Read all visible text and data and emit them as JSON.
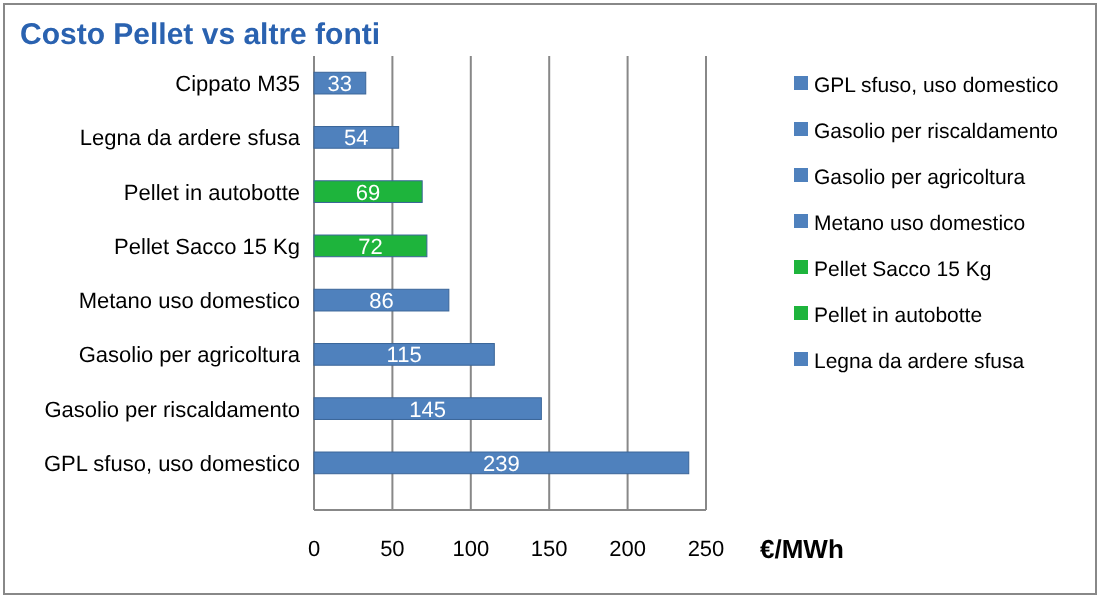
{
  "chart_data": {
    "type": "bar",
    "orientation": "horizontal",
    "title": "Costo Pellet vs altre fonti",
    "xlabel": "€/MWh",
    "categories": [
      "Cippato  M35",
      "Legna da ardere sfusa",
      "Pellet in autobotte",
      "Pellet Sacco 15 Kg",
      "Metano uso domestico",
      "Gasolio per agricoltura",
      "Gasolio per riscaldamento",
      "GPL sfuso, uso domestico"
    ],
    "series": [
      {
        "name": "GPL sfuso, uso domestico",
        "color": "#4f81bd",
        "values": [
          null,
          null,
          null,
          null,
          null,
          null,
          null,
          239
        ]
      },
      {
        "name": "Gasolio per riscaldamento",
        "color": "#4f81bd",
        "values": [
          null,
          null,
          null,
          null,
          null,
          null,
          145,
          null
        ]
      },
      {
        "name": "Gasolio per agricoltura",
        "color": "#4f81bd",
        "values": [
          null,
          null,
          null,
          null,
          null,
          115,
          null,
          null
        ]
      },
      {
        "name": "Metano uso domestico",
        "color": "#4f81bd",
        "values": [
          null,
          null,
          null,
          null,
          86,
          null,
          null,
          null
        ]
      },
      {
        "name": "Pellet Sacco  15 Kg",
        "color": "#1eb43c",
        "values": [
          null,
          null,
          null,
          72,
          null,
          null,
          null,
          null
        ]
      },
      {
        "name": "Pellet in autobotte",
        "color": "#1eb43c",
        "values": [
          null,
          null,
          69,
          null,
          null,
          null,
          null,
          null
        ]
      },
      {
        "name": "Legna da ardere sfusa",
        "color": "#4f81bd",
        "values": [
          null,
          54,
          null,
          null,
          null,
          null,
          null,
          null
        ]
      },
      {
        "color": "#4f81bd",
        "values": [
          33,
          null,
          null,
          null,
          null,
          null,
          null,
          null
        ]
      }
    ],
    "xlim": [
      0,
      250
    ],
    "xticks": [
      0,
      50,
      100,
      150,
      200,
      250
    ],
    "grid": "x",
    "legend": "right",
    "data_labels": true
  }
}
